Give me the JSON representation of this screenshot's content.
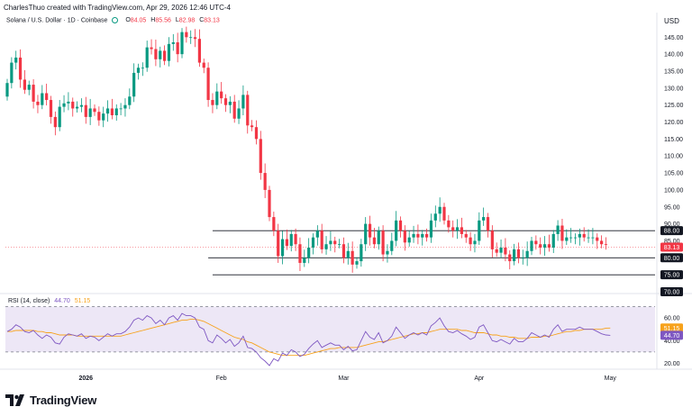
{
  "header": {
    "attribution": "CharlesThuo created with TradingView.com, Apr 29, 2026 12:46 UTC-4",
    "currency": "USD"
  },
  "legend": {
    "symbol": "Solana / U.S. Dollar · 1D · Coinbase",
    "open_label": "O",
    "open": "84.05",
    "high_label": "H",
    "high": "85.56",
    "low_label": "L",
    "low": "82.98",
    "close_label": "C",
    "close": "83.13"
  },
  "rsi_legend": {
    "title": "RSI (14, close)",
    "rsi_value": "44.70",
    "ma_value": "51.15"
  },
  "colors": {
    "up": "#089981",
    "down": "#f23645",
    "rsi_line": "#7e57c2",
    "rsi_ma": "#f7a21b",
    "rsi_band": "#ede7f6",
    "level_line": "#131722"
  },
  "logo": {
    "text": "TradingView",
    "icon": "tradingview-logo-icon"
  },
  "chart_data": {
    "type": "candlestick",
    "price_axis": {
      "ticks": [
        "145.00",
        "140.00",
        "135.00",
        "130.00",
        "125.00",
        "120.00",
        "115.00",
        "110.00",
        "105.00",
        "100.00",
        "95.00",
        "90.00",
        "85.00",
        "75.00"
      ],
      "range": [
        70,
        148
      ]
    },
    "time_axis": {
      "labels": [
        {
          "text": "2026",
          "day": 18,
          "bold": true
        },
        {
          "text": "Feb",
          "day": 49,
          "bold": false
        },
        {
          "text": "Mar",
          "day": 77,
          "bold": false
        },
        {
          "text": "Apr",
          "day": 108,
          "bold": false
        },
        {
          "text": "May",
          "day": 138,
          "bold": false
        }
      ]
    },
    "horizontal_levels": [
      {
        "label": "88.00",
        "value": 88.0,
        "from_day": 47
      },
      {
        "label": "80.00",
        "value": 80.0,
        "from_day": 46
      },
      {
        "label": "75.00",
        "value": 75.0,
        "from_day": 47
      }
    ],
    "badges": [
      {
        "label": "88.00",
        "value": 88.0,
        "style": "dark"
      },
      {
        "label": "83.13",
        "value": 83.13,
        "style": "red"
      },
      {
        "label": "80.00",
        "value": 80.0,
        "style": "dark"
      },
      {
        "label": "75.00",
        "value": 75.0,
        "style": "dark"
      },
      {
        "label": "70.00",
        "value": 70.0,
        "style": "dark"
      }
    ],
    "candles_close": [
      131.5,
      137.5,
      139,
      132.5,
      129.5,
      131,
      126,
      125,
      128.5,
      126.5,
      121.5,
      118.5,
      124.5,
      125.5,
      126,
      124,
      124.5,
      125,
      121.5,
      124,
      123,
      120.5,
      122.5,
      124,
      122,
      124,
      124,
      125,
      127.5,
      134.5,
      136,
      136,
      142,
      141.5,
      138.5,
      141,
      138,
      143,
      143.5,
      140,
      146.5,
      145,
      145,
      144.5,
      137.5,
      136,
      126.5,
      125,
      129,
      127,
      125,
      126,
      121,
      124,
      128,
      119,
      118.5,
      115,
      105,
      100,
      92,
      88,
      80.5,
      85.5,
      83.5,
      87,
      84,
      78.5,
      80,
      83,
      86,
      88,
      82.5,
      84,
      85,
      84,
      84,
      80,
      82,
      78,
      79,
      84,
      90,
      86,
      84,
      88,
      81,
      82,
      85,
      91,
      88,
      84.5,
      86,
      87,
      86,
      87,
      86,
      91,
      93,
      95,
      91,
      89,
      88,
      89,
      87,
      86,
      84,
      85,
      91,
      92,
      88,
      82.5,
      81.5,
      83,
      81,
      79,
      82.5,
      80,
      80,
      82,
      85,
      84,
      83,
      84,
      83,
      87,
      89.5,
      85,
      86,
      86,
      86,
      87,
      86,
      86,
      86,
      85,
      84,
      84,
      83.13
    ],
    "candles_open": [
      127.5,
      131.5,
      137.5,
      139,
      132.5,
      129.5,
      131,
      126,
      125,
      128.5,
      126.5,
      121.5,
      118.5,
      124.5,
      125.5,
      126,
      124,
      124.5,
      125,
      121.5,
      124,
      123,
      120.5,
      122.5,
      124,
      122,
      124,
      124,
      125,
      127.5,
      134.5,
      136,
      136,
      142,
      141.5,
      138.5,
      141,
      138,
      143,
      143.5,
      140,
      146.5,
      145,
      145,
      144.5,
      137.5,
      136,
      126.5,
      125,
      129,
      127,
      125,
      126,
      121,
      124,
      128,
      119,
      118.5,
      115,
      105,
      100,
      92,
      88,
      80.5,
      85.5,
      83.5,
      87,
      84,
      78.5,
      80,
      83,
      86,
      88,
      82.5,
      84,
      85,
      84,
      84,
      80,
      82,
      78,
      79,
      84,
      90,
      86,
      84,
      88,
      81,
      82,
      85,
      91,
      88,
      84.5,
      86,
      87,
      86,
      87,
      86,
      91,
      93,
      95,
      91,
      89,
      88,
      89,
      87,
      86,
      84,
      85,
      91,
      92,
      88,
      82.5,
      81.5,
      83,
      81,
      79,
      82.5,
      80,
      80,
      82,
      85,
      84,
      83,
      84,
      83,
      87,
      89.5,
      85,
      86,
      86,
      86,
      87,
      86,
      86,
      86,
      85,
      84.05
    ],
    "rsi": {
      "ticks": [
        "60.00",
        "40.00",
        "20.00"
      ],
      "range": [
        18,
        72
      ],
      "upper_band": 70,
      "lower_band": 30,
      "badges": [
        {
          "label": "51.15",
          "value": 51.15,
          "style": "ma"
        },
        {
          "label": "44.70",
          "value": 44.7,
          "style": "rsi"
        }
      ],
      "values": [
        48,
        50,
        54,
        52,
        48,
        47,
        49,
        45,
        42,
        45,
        43,
        38,
        37,
        43,
        46,
        45,
        44,
        46,
        42,
        44,
        43,
        40,
        43,
        46,
        44,
        46,
        46,
        48,
        52,
        58,
        60,
        58,
        62,
        60,
        55,
        58,
        54,
        60,
        62,
        58,
        64,
        62,
        62,
        60,
        52,
        50,
        40,
        38,
        45,
        42,
        38,
        41,
        35,
        38,
        44,
        34,
        33,
        30,
        25,
        22,
        18,
        24,
        22,
        29,
        27,
        32,
        30,
        26,
        28,
        33,
        37,
        40,
        34,
        36,
        38,
        36,
        36,
        32,
        35,
        31,
        32,
        40,
        48,
        43,
        41,
        47,
        38,
        40,
        44,
        52,
        47,
        42,
        45,
        47,
        45,
        47,
        45,
        53,
        56,
        60,
        53,
        48,
        47,
        49,
        46,
        44,
        41,
        43,
        52,
        54,
        47,
        40,
        39,
        41,
        39,
        37,
        42,
        39,
        39,
        42,
        47,
        45,
        43,
        45,
        43,
        50,
        54,
        48,
        50,
        50,
        50,
        52,
        50,
        50,
        50,
        48,
        46,
        45,
        44.7
      ],
      "ma": [
        48,
        48,
        49,
        49,
        49,
        49,
        49,
        48,
        48,
        47,
        47,
        46,
        45,
        45,
        45,
        45,
        44,
        44,
        44,
        44,
        44,
        44,
        44,
        44,
        44,
        44,
        44,
        45,
        46,
        47,
        48,
        49,
        50,
        51,
        52,
        53,
        54,
        55,
        56,
        57,
        58,
        58,
        59,
        59,
        58,
        57,
        55,
        53,
        51,
        49,
        47,
        45,
        43,
        42,
        41,
        39,
        38,
        36,
        34,
        32,
        30,
        29,
        28,
        27,
        27,
        27,
        27,
        27,
        27,
        28,
        29,
        30,
        31,
        32,
        33,
        33,
        34,
        34,
        34,
        34,
        34,
        35,
        36,
        37,
        38,
        39,
        39,
        40,
        41,
        42,
        43,
        44,
        45,
        46,
        46,
        47,
        47,
        48,
        49,
        50,
        50,
        50,
        50,
        50,
        49,
        49,
        48,
        47,
        47,
        47,
        46,
        45,
        45,
        44,
        44,
        43,
        43,
        42,
        42,
        42,
        43,
        43,
        43,
        44,
        44,
        45,
        46,
        47,
        48,
        48,
        49,
        49,
        50,
        50,
        50,
        50,
        50,
        51,
        51.15
      ]
    }
  }
}
